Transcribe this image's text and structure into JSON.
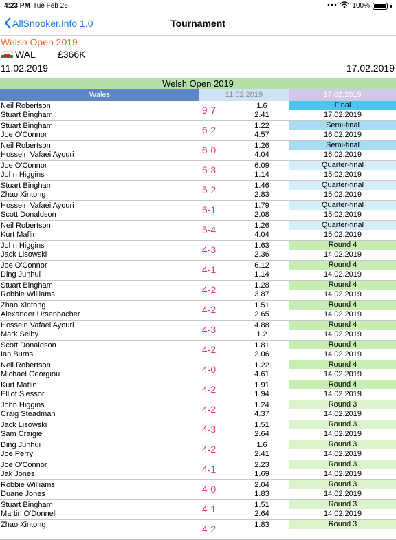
{
  "status_bar": {
    "time": "4:23 PM",
    "date": "Tue Feb 26",
    "battery": "100%"
  },
  "nav": {
    "back_label": "AllSnooker.Info 1.0",
    "title": "Tournament"
  },
  "tournament": {
    "name": "Welsh Open 2019",
    "country_code": "WAL",
    "prize": "£366K",
    "start_date": "11.02.2019",
    "end_date": "17.02.2019"
  },
  "table": {
    "banner": "Welsh Open 2019",
    "country": "Wales",
    "start_date": "11.02.2019",
    "end_date": "17.02.2019"
  },
  "round_colors": {
    "Final": "#4fc3f0",
    "Semi-final": "#a8dcf4",
    "Quarter-final": "#d6eefa",
    "Round 4": "#c6eeb0",
    "Round 3": "#dcf4cc"
  },
  "matches": [
    {
      "player1": "Neil Robertson",
      "player2": "Stuart Bingham",
      "score": "9-7",
      "odds1": "1.6",
      "odds2": "2.41",
      "round": "Final",
      "date": "17.02.2019"
    },
    {
      "player1": "Stuart Bingham",
      "player2": "Joe O'Connor",
      "score": "6-2",
      "odds1": "1.22",
      "odds2": "4.57",
      "round": "Semi-final",
      "date": "16.02.2019"
    },
    {
      "player1": "Neil Robertson",
      "player2": "Hossein Vafaei Ayouri",
      "score": "6-0",
      "odds1": "1.26",
      "odds2": "4.04",
      "round": "Semi-final",
      "date": "16.02.2019"
    },
    {
      "player1": "Joe O'Connor",
      "player2": "John Higgins",
      "score": "5-3",
      "odds1": "6.09",
      "odds2": "1.14",
      "round": "Quarter-final",
      "date": "15.02.2019"
    },
    {
      "player1": "Stuart Bingham",
      "player2": "Zhao Xintong",
      "score": "5-2",
      "odds1": "1.46",
      "odds2": "2.83",
      "round": "Quarter-final",
      "date": "15.02.2019"
    },
    {
      "player1": "Hossein Vafaei Ayouri",
      "player2": "Scott Donaldson",
      "score": "5-1",
      "odds1": "1.79",
      "odds2": "2.08",
      "round": "Quarter-final",
      "date": "15.02.2019"
    },
    {
      "player1": "Neil Robertson",
      "player2": "Kurt Maflin",
      "score": "5-4",
      "odds1": "1.26",
      "odds2": "4.04",
      "round": "Quarter-final",
      "date": "15.02.2019"
    },
    {
      "player1": "John Higgins",
      "player2": "Jack Lisowski",
      "score": "4-3",
      "odds1": "1.63",
      "odds2": "2.36",
      "round": "Round 4",
      "date": "14.02.2019"
    },
    {
      "player1": "Joe O'Connor",
      "player2": "Ding Junhui",
      "score": "4-1",
      "odds1": "6.12",
      "odds2": "1.14",
      "round": "Round 4",
      "date": "14.02.2019"
    },
    {
      "player1": "Stuart Bingham",
      "player2": "Robbie Williams",
      "score": "4-2",
      "odds1": "1.28",
      "odds2": "3.87",
      "round": "Round 4",
      "date": "14.02.2019"
    },
    {
      "player1": "Zhao Xintong",
      "player2": "Alexander Ursenbacher",
      "score": "4-2",
      "odds1": "1.51",
      "odds2": "2.65",
      "round": "Round 4",
      "date": "14.02.2019"
    },
    {
      "player1": "Hossein Vafaei Ayouri",
      "player2": "Mark Selby",
      "score": "4-3",
      "odds1": "4.88",
      "odds2": "1.2",
      "round": "Round 4",
      "date": "14.02.2019"
    },
    {
      "player1": "Scott Donaldson",
      "player2": "Ian Burns",
      "score": "4-2",
      "odds1": "1.81",
      "odds2": "2.06",
      "round": "Round 4",
      "date": "14.02.2019"
    },
    {
      "player1": "Neil Robertson",
      "player2": "Michael Georgiou",
      "score": "4-0",
      "odds1": "1.22",
      "odds2": "4.61",
      "round": "Round 4",
      "date": "14.02.2019"
    },
    {
      "player1": "Kurt Maflin",
      "player2": "Elliot Slessor",
      "score": "4-2",
      "odds1": "1.91",
      "odds2": "1.94",
      "round": "Round 4",
      "date": "14.02.2019"
    },
    {
      "player1": "John Higgins",
      "player2": "Craig Steadman",
      "score": "4-2",
      "odds1": "1.24",
      "odds2": "4.37",
      "round": "Round 3",
      "date": "14.02.2019"
    },
    {
      "player1": "Jack Lisowski",
      "player2": "Sam Craigie",
      "score": "4-3",
      "odds1": "1.51",
      "odds2": "2.64",
      "round": "Round 3",
      "date": "14.02.2019"
    },
    {
      "player1": "Ding Junhui",
      "player2": "Joe Perry",
      "score": "4-2",
      "odds1": "1.6",
      "odds2": "2.41",
      "round": "Round 3",
      "date": "14.02.2019"
    },
    {
      "player1": "Joe O'Connor",
      "player2": "Jak Jones",
      "score": "4-1",
      "odds1": "2.23",
      "odds2": "1.69",
      "round": "Round 3",
      "date": "14.02.2019"
    },
    {
      "player1": "Robbie Williams",
      "player2": "Duane Jones",
      "score": "4-0",
      "odds1": "2.04",
      "odds2": "1.83",
      "round": "Round 3",
      "date": "14.02.2019"
    },
    {
      "player1": "Stuart Bingham",
      "player2": "Martin O'Donnell",
      "score": "4-1",
      "odds1": "1.51",
      "odds2": "2.64",
      "round": "Round 3",
      "date": "14.02.2019"
    },
    {
      "player1": "Zhao Xintong",
      "player2": "",
      "score": "4-2",
      "odds1": "1.83",
      "odds2": "",
      "round": "Round 3",
      "date": ""
    }
  ]
}
